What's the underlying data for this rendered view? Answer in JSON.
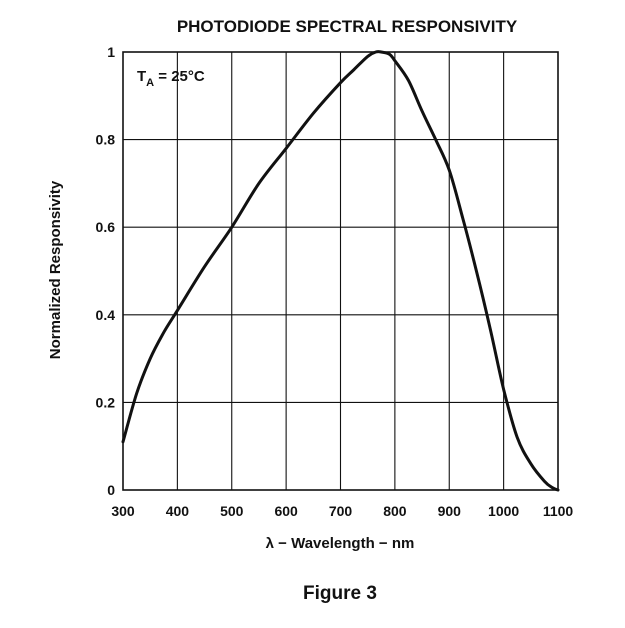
{
  "chart_data": {
    "type": "line",
    "title": "PHOTODIODE SPECTRAL RESPONSIVITY",
    "xlabel": "λ − Wavelength − nm",
    "ylabel": "Normalized Responsivity",
    "xlim": [
      300,
      1100
    ],
    "ylim": [
      0,
      1
    ],
    "xticks": [
      300,
      400,
      500,
      600,
      700,
      800,
      900,
      1000,
      1100
    ],
    "yticks": [
      0,
      0.2,
      0.4,
      0.6,
      0.8,
      1
    ],
    "ytick_labels": [
      "0",
      "0.2",
      "0.4",
      "0.6",
      "0.8",
      "1"
    ],
    "grid": true,
    "annotation": {
      "main": "T",
      "sub": "A",
      "rest": " = 25°C"
    },
    "caption": "Figure 3",
    "series": [
      {
        "x": [
          300,
          325,
          350,
          375,
          400,
          450,
          500,
          550,
          600,
          650,
          700,
          725,
          750,
          765,
          775,
          790,
          800,
          825,
          850,
          875,
          900,
          925,
          950,
          975,
          1000,
          1025,
          1050,
          1075,
          1090,
          1100
        ],
        "values": [
          0.11,
          0.22,
          0.3,
          0.36,
          0.41,
          0.51,
          0.6,
          0.7,
          0.78,
          0.86,
          0.93,
          0.96,
          0.99,
          1.0,
          1.0,
          0.995,
          0.98,
          0.935,
          0.865,
          0.8,
          0.73,
          0.62,
          0.5,
          0.37,
          0.23,
          0.12,
          0.06,
          0.02,
          0.005,
          0.0
        ]
      }
    ]
  }
}
